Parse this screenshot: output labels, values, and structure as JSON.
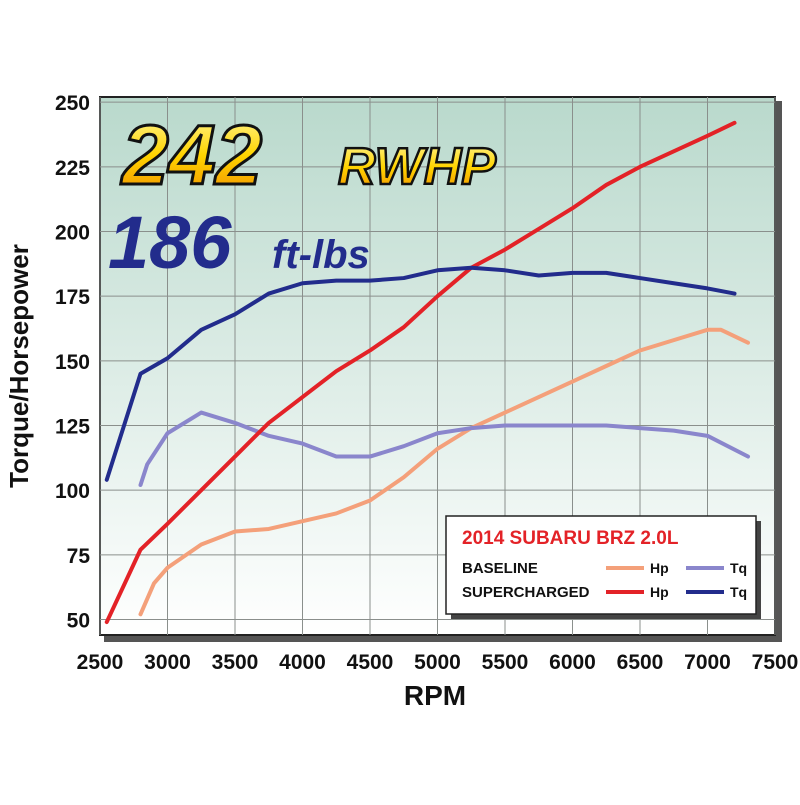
{
  "chart_data": {
    "type": "line",
    "annotations": [
      "242",
      "RWHP",
      "186",
      "ft-lbs"
    ],
    "x_label": "RPM",
    "y_label": "Torque/Horsepower",
    "xlim": [
      2500,
      7500
    ],
    "xticks": [
      2500,
      3000,
      3500,
      4000,
      4500,
      5000,
      5500,
      6000,
      6500,
      7000,
      7500
    ],
    "ylim": [
      44,
      252
    ],
    "yticks": [
      50,
      75,
      100,
      125,
      150,
      175,
      200,
      225,
      250
    ],
    "grid": true,
    "legend_title": "2014 SUBARU BRZ 2.0L",
    "series_groups": [
      {
        "name": "BASELINE",
        "series": [
          {
            "name": "Hp",
            "color": "#f4a07a",
            "x": [
              2800,
              2900,
              3000,
              3250,
              3500,
              3750,
              4000,
              4250,
              4500,
              4750,
              5000,
              5250,
              5500,
              5750,
              6000,
              6250,
              6500,
              6750,
              7000,
              7100,
              7300
            ],
            "values": [
              52,
              64,
              70,
              79,
              84,
              85,
              88,
              91,
              96,
              105,
              116,
              124,
              130,
              136,
              142,
              148,
              154,
              158,
              162,
              162,
              157
            ]
          },
          {
            "name": "Tq",
            "color": "#8a86cc",
            "x": [
              2800,
              2850,
              3000,
              3250,
              3500,
              3750,
              4000,
              4250,
              4500,
              4750,
              5000,
              5250,
              5500,
              5750,
              6000,
              6250,
              6500,
              6750,
              7000,
              7300
            ],
            "values": [
              102,
              110,
              122,
              130,
              126,
              121,
              118,
              113,
              113,
              117,
              122,
              124,
              125,
              125,
              125,
              125,
              124,
              123,
              121,
              113
            ]
          }
        ]
      },
      {
        "name": "SUPERCHARGED",
        "series": [
          {
            "name": "Hp",
            "color": "#e32227",
            "x": [
              2550,
              2800,
              3000,
              3250,
              3500,
              3750,
              4000,
              4250,
              4500,
              4750,
              5000,
              5250,
              5500,
              5750,
              6000,
              6250,
              6500,
              6750,
              7000,
              7200
            ],
            "values": [
              49,
              77,
              87,
              100,
              113,
              126,
              136,
              146,
              154,
              163,
              175,
              186,
              193,
              201,
              209,
              218,
              225,
              231,
              237,
              242
            ]
          },
          {
            "name": "Tq",
            "color": "#222c8c",
            "x": [
              2550,
              2800,
              3000,
              3250,
              3500,
              3750,
              4000,
              4250,
              4500,
              4750,
              5000,
              5250,
              5500,
              5750,
              6000,
              6250,
              6500,
              6750,
              7000,
              7200
            ],
            "values": [
              104,
              145,
              151,
              162,
              168,
              176,
              180,
              181,
              181,
              182,
              185,
              186,
              185,
              183,
              184,
              184,
              182,
              180,
              178,
              176
            ]
          }
        ]
      }
    ]
  }
}
